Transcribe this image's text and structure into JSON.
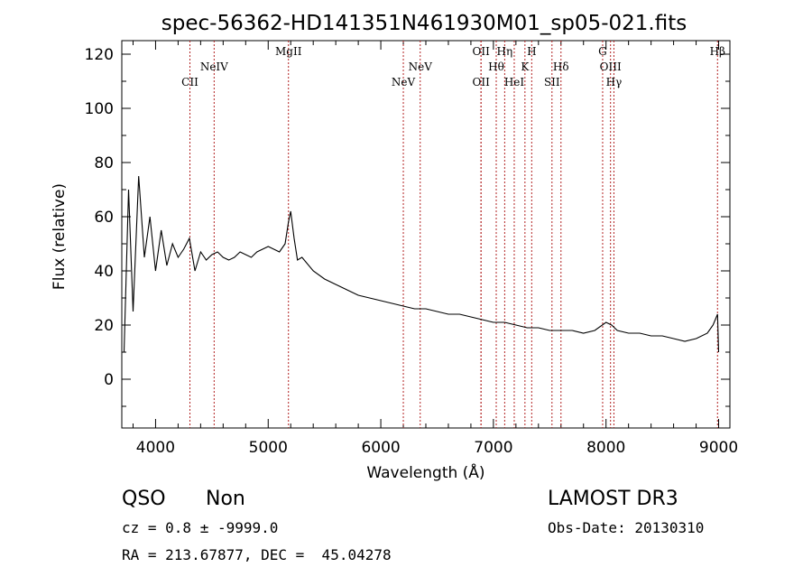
{
  "chart_data": {
    "type": "line",
    "title": "spec-56362-HD141351N461930M01_sp05-021.fits",
    "xlabel": "Wavelength (Å)",
    "ylabel": "Flux (relative)",
    "xlim": [
      3700,
      9100
    ],
    "ylim": [
      -18,
      125
    ],
    "xticks": [
      4000,
      5000,
      6000,
      7000,
      8000,
      9000
    ],
    "yticks": [
      0,
      20,
      40,
      60,
      80,
      100,
      120
    ],
    "grid": false,
    "line_color": "#000000",
    "marker_color": "#b22222",
    "series": [
      {
        "x": [
          3720,
          3760,
          3800,
          3850,
          3900,
          3950,
          4000,
          4050,
          4100,
          4150,
          4200,
          4250,
          4300,
          4350,
          4400,
          4450,
          4500,
          4550,
          4600,
          4650,
          4700,
          4750,
          4800,
          4850,
          4900,
          4950,
          5000,
          5050,
          5100,
          5150,
          5180,
          5200,
          5230,
          5260,
          5300,
          5400,
          5500,
          5600,
          5700,
          5800,
          5900,
          6000,
          6100,
          6200,
          6300,
          6400,
          6500,
          6600,
          6700,
          6800,
          6900,
          7000,
          7100,
          7200,
          7300,
          7400,
          7500,
          7600,
          7700,
          7800,
          7900,
          8000,
          8050,
          8100,
          8200,
          8300,
          8400,
          8500,
          8600,
          8700,
          8800,
          8900,
          8950,
          8990,
          9000
        ],
        "y": [
          10,
          70,
          25,
          75,
          45,
          60,
          40,
          55,
          42,
          50,
          45,
          48,
          52,
          40,
          47,
          44,
          46,
          47,
          45,
          44,
          45,
          47,
          46,
          45,
          47,
          48,
          49,
          48,
          47,
          50,
          58,
          62,
          52,
          44,
          45,
          40,
          37,
          35,
          33,
          31,
          30,
          29,
          28,
          27,
          26,
          26,
          25,
          24,
          24,
          23,
          22,
          21,
          21,
          20,
          19,
          19,
          18,
          18,
          18,
          17,
          18,
          21,
          20,
          18,
          17,
          17,
          16,
          16,
          15,
          14,
          15,
          17,
          20,
          24,
          10
        ]
      }
    ],
    "lines": [
      {
        "x": 4305,
        "label": "CII",
        "row": 3
      },
      {
        "x": 4520,
        "label": "NeIV",
        "row": 2
      },
      {
        "x": 5180,
        "label": "MgII",
        "row": 1
      },
      {
        "x": 6200,
        "label": "NeV",
        "row": 3
      },
      {
        "x": 6350,
        "label": "NeV",
        "row": 2
      },
      {
        "x": 6890,
        "label": "OII",
        "row": 1
      },
      {
        "x": 6890,
        "label": "OII",
        "row": 3
      },
      {
        "x": 7025,
        "label": "Hθ",
        "row": 2
      },
      {
        "x": 7100,
        "label": "Hη",
        "row": 1
      },
      {
        "x": 7185,
        "label": "HeI",
        "row": 3
      },
      {
        "x": 7280,
        "label": "K",
        "row": 2
      },
      {
        "x": 7340,
        "label": "H",
        "row": 1
      },
      {
        "x": 7520,
        "label": "SII",
        "row": 3
      },
      {
        "x": 7600,
        "label": "Hδ",
        "row": 2
      },
      {
        "x": 7970,
        "label": "G",
        "row": 1
      },
      {
        "x": 8040,
        "label": "OIII",
        "row": 2
      },
      {
        "x": 8070,
        "label": "Hγ",
        "row": 3
      },
      {
        "x": 8990,
        "label": "Hβ",
        "row": 1
      }
    ]
  },
  "info": {
    "class": "QSO",
    "subclass": "Non",
    "cz": "cz = 0.8 ± -9999.0",
    "radec": "RA = 213.67877, DEC =  45.04278",
    "survey": "LAMOST DR3",
    "obs_date": "Obs-Date: 20130310"
  }
}
